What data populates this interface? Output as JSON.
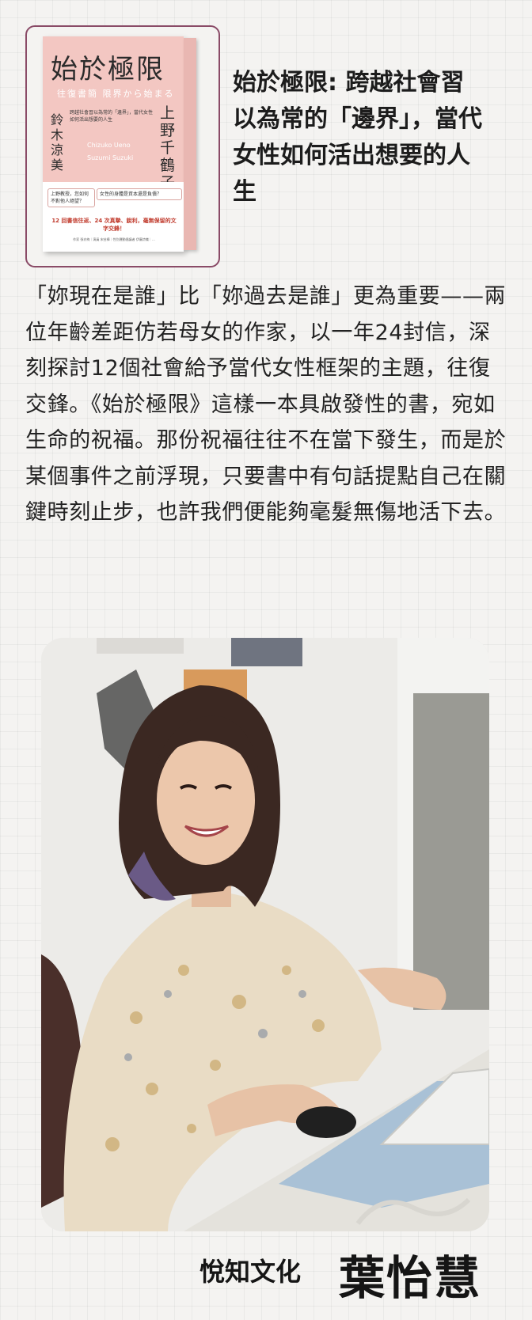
{
  "book": {
    "title": "始於極限",
    "subtitle": "往復書簡 限界から始まる",
    "author_left": "鈴木涼美",
    "author_right": "上野千鶴子",
    "blurb": "跨越社會習以為常的「邊界」，當代女性如何活出想要的人生",
    "romaji": "Chizuko Ueno\nSuzumi Suzuki",
    "question_1": "上野教授，您如何不對他人絕望？",
    "question_2": "女性的身體是資本還是負債？",
    "tagline": "12 回書信往返、24 次真摯、銳利，毫無保留的文字交鋒！",
    "credits": "作家 張亦絢｜演員 宋芸樺｜性別運動倡議者 伊藤詩織｜…"
  },
  "headline": "始於極限: 跨越社會習以為常的「邊界」，當代女性如何活出想要的人生",
  "body": "「妳現在是誰」比「妳過去是誰」更為重要——兩位年齡差距仿若母女的作家，以一年24封信，深刻探討12個社會給予當代女性框架的主題，往復交鋒。《始於極限》這樣一本具啟發性的書，宛如生命的祝福。那份祝福往往不在當下發生，而是於某個事件之前浮現，只要書中有句話提點自己在關鍵時刻止步，也許我們便能夠毫髮無傷地活下去。",
  "footer": {
    "org": "悅知文化",
    "name": "葉怡慧"
  }
}
